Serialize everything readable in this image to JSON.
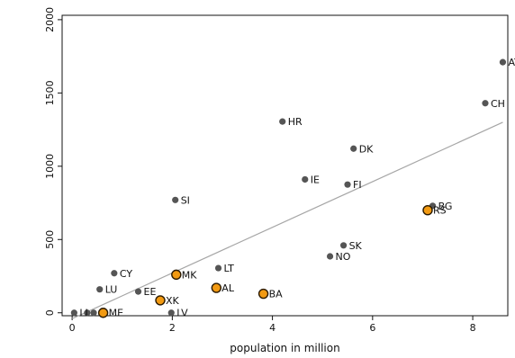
{
  "chart_data": {
    "type": "scatter",
    "title": "",
    "xlabel": "population in million",
    "ylabel": "",
    "xlim": [
      -0.2,
      8.7
    ],
    "ylim": [
      -20,
      2030
    ],
    "xticks": [
      0,
      2,
      4,
      6,
      8
    ],
    "yticks": [
      0,
      500,
      1000,
      1500,
      2000
    ],
    "grid": false,
    "colors": {
      "point": "#555555",
      "highlight_fill": "#f29a12",
      "highlight_stroke": "#2b1a00",
      "fit_line": "#a6a6a6",
      "axis": "#111111"
    },
    "fit_line": {
      "x": [
        0.0,
        8.6
      ],
      "y": [
        -40,
        1300
      ]
    },
    "series": [
      {
        "points": [
          {
            "label": "LI",
            "x": 0.04,
            "y": 0
          },
          {
            "label": "",
            "x": 0.3,
            "y": 0
          },
          {
            "label": "",
            "x": 0.43,
            "y": 0
          },
          {
            "label": "LU",
            "x": 0.55,
            "y": 160
          },
          {
            "label": "CY",
            "x": 0.84,
            "y": 270
          },
          {
            "label": "EE",
            "x": 1.32,
            "y": 145
          },
          {
            "label": "LV",
            "x": 1.98,
            "y": 0
          },
          {
            "label": "SI",
            "x": 2.06,
            "y": 770
          },
          {
            "label": "LT",
            "x": 2.92,
            "y": 305
          },
          {
            "label": "HR",
            "x": 4.2,
            "y": 1305
          },
          {
            "label": "IE",
            "x": 4.65,
            "y": 910
          },
          {
            "label": "NO",
            "x": 5.15,
            "y": 385
          },
          {
            "label": "SK",
            "x": 5.42,
            "y": 460
          },
          {
            "label": "FI",
            "x": 5.5,
            "y": 875
          },
          {
            "label": "DK",
            "x": 5.62,
            "y": 1120
          },
          {
            "label": "BG",
            "x": 7.2,
            "y": 730
          },
          {
            "label": "CH",
            "x": 8.25,
            "y": 1430
          },
          {
            "label": "AT",
            "x": 8.6,
            "y": 1710
          }
        ]
      },
      {
        "highlighted": true,
        "points": [
          {
            "label": "ME",
            "x": 0.62,
            "y": 0
          },
          {
            "label": "XK",
            "x": 1.76,
            "y": 85
          },
          {
            "label": "MK",
            "x": 2.08,
            "y": 260
          },
          {
            "label": "AL",
            "x": 2.88,
            "y": 170
          },
          {
            "label": "BA",
            "x": 3.82,
            "y": 130
          },
          {
            "label": "RS",
            "x": 7.1,
            "y": 700
          }
        ]
      }
    ]
  }
}
